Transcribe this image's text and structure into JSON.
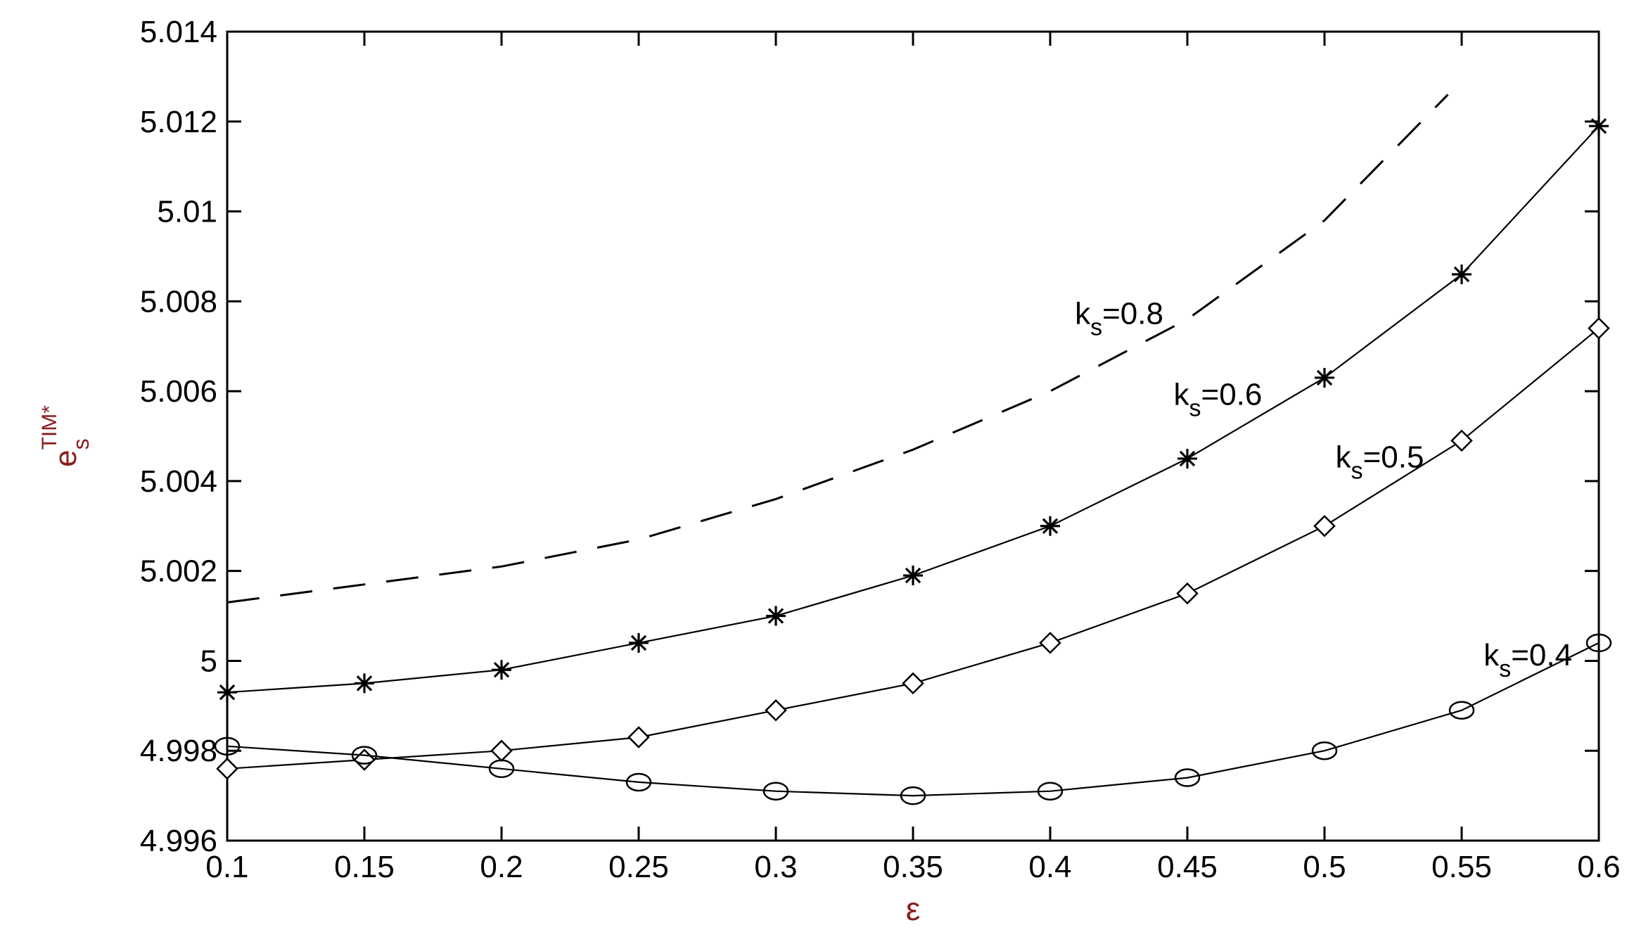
{
  "chart_data": {
    "type": "line",
    "xlabel": "ε",
    "ylabel": {
      "main": "e",
      "sub": "s",
      "sup": "TIM*"
    },
    "xlim": [
      0.1,
      0.6
    ],
    "ylim": [
      4.996,
      5.014
    ],
    "grid": false,
    "x_ticks": [
      "0.1",
      "0.15",
      "0.2",
      "0.25",
      "0.3",
      "0.35",
      "0.4",
      "0.45",
      "0.5",
      "0.55",
      "0.6"
    ],
    "y_ticks": [
      "4.996",
      "4.998",
      "5",
      "5.002",
      "5.004",
      "5.006",
      "5.008",
      "5.01",
      "5.012",
      "5.014"
    ],
    "series": [
      {
        "name": "ks=0.8",
        "label": {
          "main": "k",
          "sub": "s",
          "rest": "=0.8"
        },
        "style": "dashed",
        "marker": "none",
        "x": [
          0.1,
          0.15,
          0.2,
          0.25,
          0.3,
          0.35,
          0.4,
          0.45,
          0.5,
          0.545
        ],
        "y": [
          5.0013,
          5.0017,
          5.0021,
          5.0027,
          5.0036,
          5.0047,
          5.006,
          5.0076,
          5.0098,
          5.0126
        ]
      },
      {
        "name": "ks=0.6",
        "label": {
          "main": "k",
          "sub": "s",
          "rest": "=0.6"
        },
        "style": "solid",
        "marker": "star",
        "x": [
          0.1,
          0.15,
          0.2,
          0.25,
          0.3,
          0.35,
          0.4,
          0.45,
          0.5,
          0.55,
          0.6
        ],
        "y": [
          4.9993,
          4.9995,
          4.9998,
          5.0004,
          5.001,
          5.0019,
          5.003,
          5.0045,
          5.0063,
          5.0086,
          5.0119
        ]
      },
      {
        "name": "ks=0.5",
        "label": {
          "main": "k",
          "sub": "s",
          "rest": "=0.5"
        },
        "style": "solid",
        "marker": "diamond",
        "x": [
          0.1,
          0.15,
          0.2,
          0.25,
          0.3,
          0.35,
          0.4,
          0.45,
          0.5,
          0.55,
          0.6
        ],
        "y": [
          4.9976,
          4.9978,
          4.998,
          4.9983,
          4.9989,
          4.9995,
          5.0004,
          5.0015,
          5.003,
          5.0049,
          5.0074
        ]
      },
      {
        "name": "ks=0.4",
        "label": {
          "main": "k",
          "sub": "s",
          "rest": "=0.4"
        },
        "style": "solid",
        "marker": "circle",
        "x": [
          0.1,
          0.15,
          0.2,
          0.25,
          0.3,
          0.35,
          0.4,
          0.45,
          0.5,
          0.55,
          0.6
        ],
        "y": [
          4.9981,
          4.9979,
          4.9976,
          4.9973,
          4.9971,
          4.997,
          4.9971,
          4.9974,
          4.998,
          4.9989,
          5.0004
        ]
      }
    ]
  }
}
